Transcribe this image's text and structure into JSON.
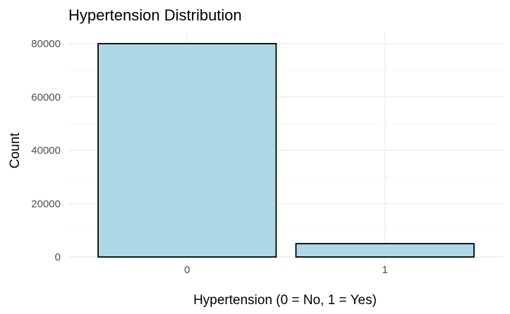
{
  "chart_data": {
    "type": "bar",
    "title": "Hypertension Distribution",
    "xlabel": "Hypertension (0 = No, 1 = Yes)",
    "ylabel": "Count",
    "categories": [
      "0",
      "1"
    ],
    "values": [
      80000,
      5000
    ],
    "ylim": [
      0,
      80000
    ],
    "yticks": [
      0,
      20000,
      40000,
      60000,
      80000
    ],
    "bar_color": "#add8e6",
    "bar_outline": "#000000",
    "grid": true,
    "legend": "none"
  }
}
